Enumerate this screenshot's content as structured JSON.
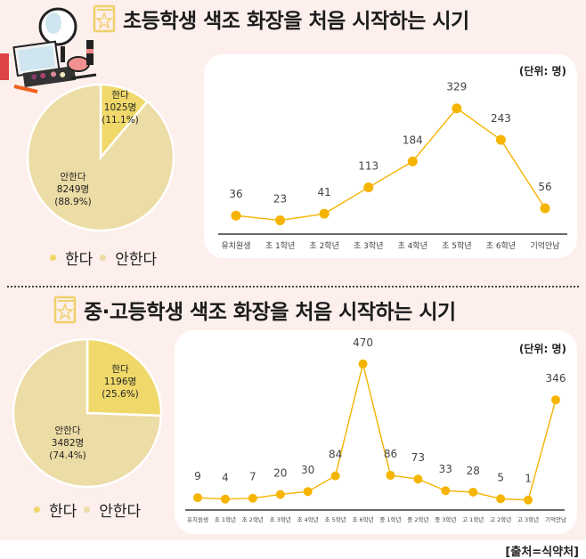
{
  "colors": {
    "background": "#fcefec",
    "panel": "#ffffff",
    "accent_line": "#f5b400",
    "pie_yes": "#f0d96a",
    "pie_no": "#ecdca5",
    "icon": "#f0d06a"
  },
  "sections": [
    {
      "title": "초등학생 색조 화장을 처음 시작하는 시기",
      "pie": {
        "slices": [
          {
            "label": "한다",
            "count": "1025명",
            "pct_text": "(11.1%)",
            "value": 1025,
            "percent": 11.1
          },
          {
            "label": "안한다",
            "count": "8249명",
            "pct_text": "(88.9%)",
            "value": 8249,
            "percent": 88.9
          }
        ]
      },
      "legend": [
        "한다",
        "안한다"
      ],
      "unit": "(단위: 명)"
    },
    {
      "title": "중·고등학생 색조 화장을 처음 시작하는 시기",
      "pie": {
        "slices": [
          {
            "label": "한다",
            "count": "1196명",
            "pct_text": "(25.6%)",
            "value": 1196,
            "percent": 25.6
          },
          {
            "label": "안한다",
            "count": "3482명",
            "pct_text": "(74.4%)",
            "value": 3482,
            "percent": 74.4
          }
        ]
      },
      "legend": [
        "한다",
        "안한다"
      ],
      "unit": "(단위: 명)"
    }
  ],
  "source": "[출처=식약처]",
  "chart_data": [
    {
      "type": "pie",
      "title": "초등학생 색조 화장 여부",
      "categories": [
        "한다",
        "안한다"
      ],
      "values": [
        1025,
        8249
      ],
      "percents": [
        11.1,
        88.9
      ],
      "legend": "bottom"
    },
    {
      "type": "line",
      "title": "초등학생 색조 화장을 처음 시작하는 시기",
      "unit": "(단위: 명)",
      "categories": [
        "유치원생",
        "초 1학년",
        "초 2학년",
        "초 3학년",
        "초 4학년",
        "초 5학년",
        "초 6학년",
        "기억안남"
      ],
      "values": [
        36,
        23,
        41,
        113,
        184,
        329,
        243,
        56
      ],
      "ylim": [
        0,
        360
      ],
      "grid": false,
      "data_labels": true
    },
    {
      "type": "pie",
      "title": "중·고등학생 색조 화장 여부",
      "categories": [
        "한다",
        "안한다"
      ],
      "values": [
        1196,
        3482
      ],
      "percents": [
        25.6,
        74.4
      ],
      "legend": "bottom"
    },
    {
      "type": "line",
      "title": "중·고등학생 색조 화장을 처음 시작하는 시기",
      "unit": "(단위: 명)",
      "categories": [
        "유치원생",
        "초 1학년",
        "초 2학년",
        "초 3학년",
        "초 4학년",
        "초 5학년",
        "초 6학년",
        "중 1학년",
        "중 2학년",
        "중 3학년",
        "고 1학년",
        "고 2학년",
        "고 3학년",
        "기억안남"
      ],
      "values": [
        9,
        4,
        7,
        20,
        30,
        84,
        470,
        86,
        73,
        33,
        28,
        5,
        1,
        346
      ],
      "ylim": [
        0,
        500
      ],
      "grid": false,
      "data_labels": true
    }
  ]
}
